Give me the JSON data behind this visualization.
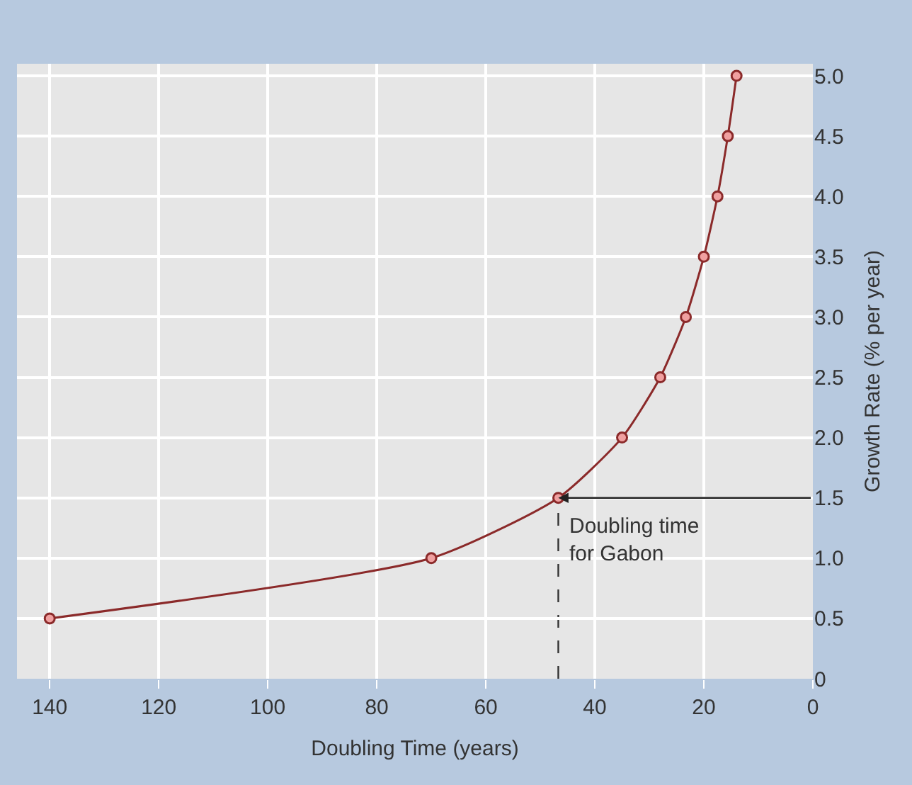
{
  "chart_data": {
    "type": "line",
    "xlabel": "Doubling Time (years)",
    "ylabel": "Growth Rate (% per year)",
    "x": [
      140,
      70,
      46.7,
      35,
      28,
      23.3,
      20,
      17.5,
      15.6,
      14
    ],
    "series": [
      {
        "color": "#8b2a2a",
        "values": [
          0.5,
          1.0,
          1.5,
          2.0,
          2.5,
          3.0,
          3.5,
          4.0,
          4.5,
          5.0
        ]
      }
    ],
    "marker": "circle",
    "line_style": "solid",
    "grid": true,
    "xlim": [
      146,
      0
    ],
    "xticks": [
      140,
      120,
      100,
      80,
      60,
      40,
      20,
      0
    ],
    "ylim": [
      0,
      5.1
    ],
    "yticks": [
      {
        "value": 0,
        "label": "0"
      },
      0.5,
      {
        "value": 1,
        "label": "1.0"
      },
      1.5,
      {
        "value": 2,
        "label": "2.0"
      },
      2.5,
      {
        "value": 3,
        "label": "3.0"
      },
      3.5,
      {
        "value": 4,
        "label": "4.0"
      },
      4.5,
      {
        "value": 5,
        "label": "5.0"
      }
    ],
    "ref_lines": [
      {
        "axis": "x",
        "value": 46.7,
        "line_style": "dashed",
        "color": "#333333"
      }
    ],
    "annotations": [
      {
        "text": "Doubling time\nfor Gabon",
        "x": 46.7,
        "y": 1.5
      }
    ]
  }
}
